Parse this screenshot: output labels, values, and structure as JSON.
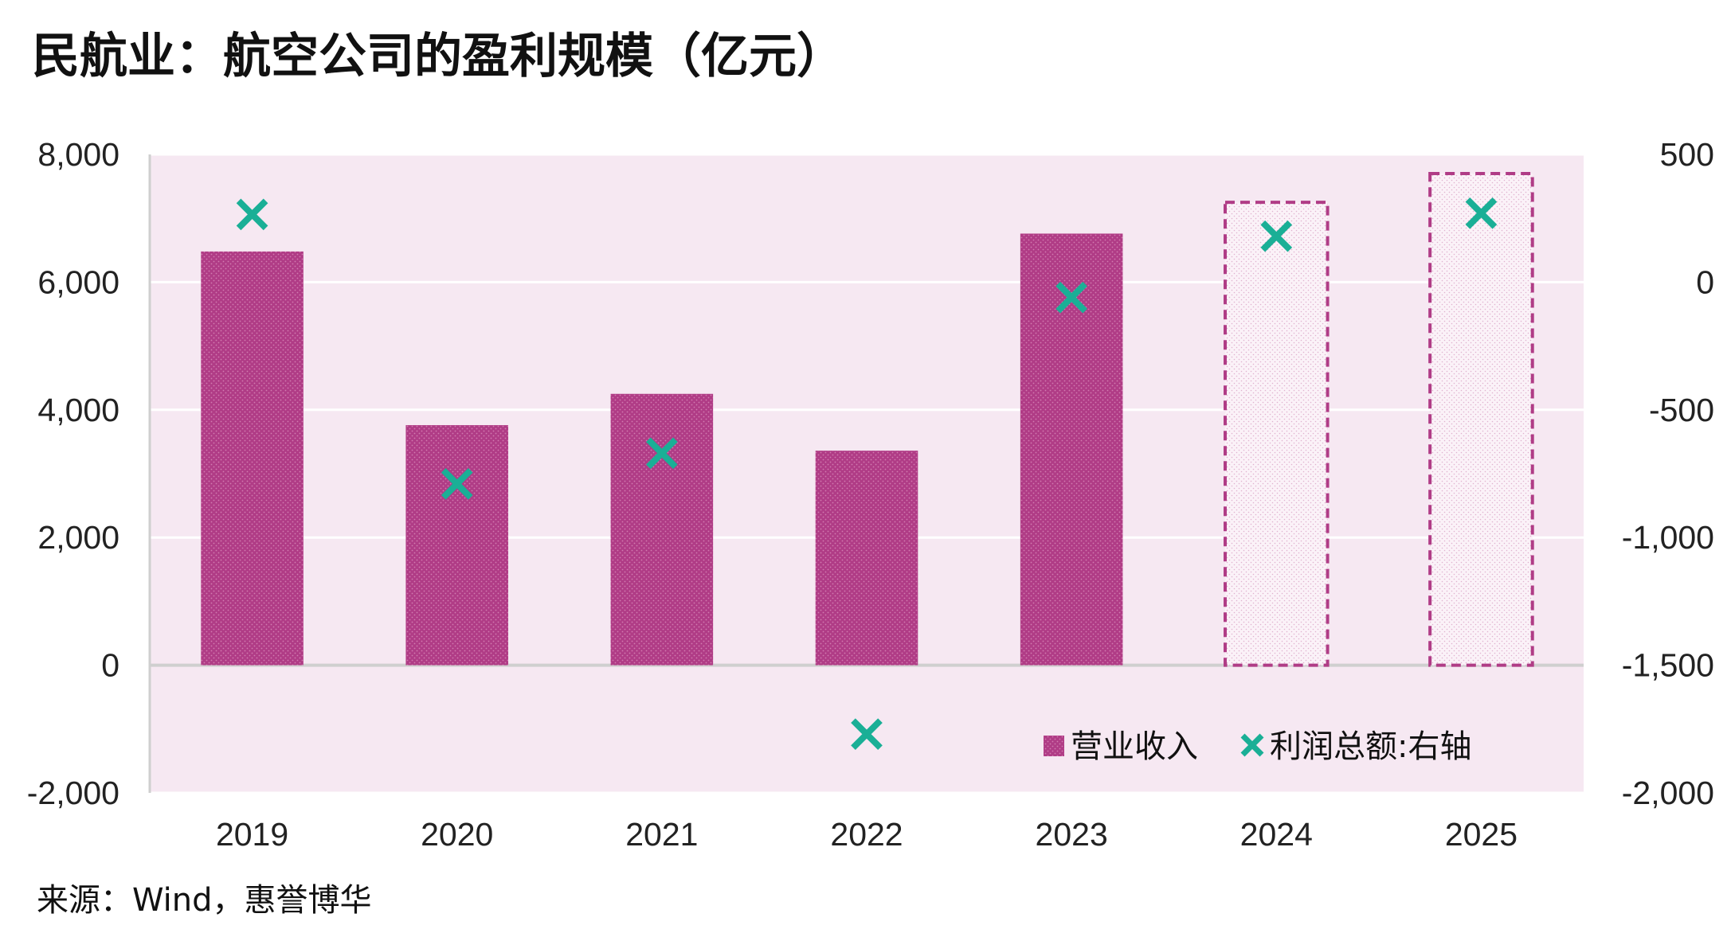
{
  "title": "民航业：航空公司的盈利规模（亿元）",
  "source": "来源：Wind，惠誉博华",
  "colors": {
    "revenue": "#b03c86",
    "profit": "#1aaf96",
    "plot_bg": "#f6e8f2",
    "forecast_border": "#b03c86"
  },
  "chart_data": {
    "type": "bar",
    "categories": [
      "2019",
      "2020",
      "2021",
      "2022",
      "2023",
      "2024",
      "2025"
    ],
    "series": [
      {
        "name": "营业收入",
        "axis": "left",
        "style": "bar",
        "values": [
          6480,
          3760,
          4250,
          3360,
          6760,
          7250,
          7700
        ],
        "forecast": [
          false,
          false,
          false,
          false,
          false,
          true,
          true
        ]
      },
      {
        "name": "利润总额:右轴",
        "axis": "right",
        "style": "marker-x",
        "values": [
          265,
          -790,
          -670,
          -1770,
          -60,
          180,
          270
        ]
      }
    ],
    "y_left": {
      "min": -2000,
      "max": 8000,
      "ticks": [
        "8,000",
        "6,000",
        "4,000",
        "2,000",
        "0",
        "-2,000"
      ]
    },
    "y_right": {
      "min": -2000,
      "max": 500,
      "ticks": [
        "500",
        "0",
        "-500",
        "-1,000",
        "-1,500",
        "-2,000"
      ]
    },
    "legend_position": "bottom-right",
    "grid": true
  }
}
